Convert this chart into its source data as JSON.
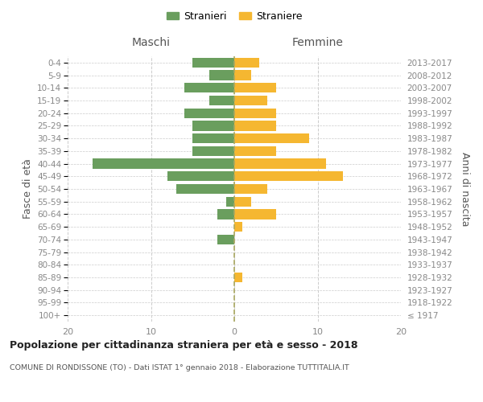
{
  "age_groups": [
    "100+",
    "95-99",
    "90-94",
    "85-89",
    "80-84",
    "75-79",
    "70-74",
    "65-69",
    "60-64",
    "55-59",
    "50-54",
    "45-49",
    "40-44",
    "35-39",
    "30-34",
    "25-29",
    "20-24",
    "15-19",
    "10-14",
    "5-9",
    "0-4"
  ],
  "birth_years": [
    "≤ 1917",
    "1918-1922",
    "1923-1927",
    "1928-1932",
    "1933-1937",
    "1938-1942",
    "1943-1947",
    "1948-1952",
    "1953-1957",
    "1958-1962",
    "1963-1967",
    "1968-1972",
    "1973-1977",
    "1978-1982",
    "1983-1987",
    "1988-1992",
    "1993-1997",
    "1998-2002",
    "2003-2007",
    "2008-2012",
    "2013-2017"
  ],
  "maschi": [
    0,
    0,
    0,
    0,
    0,
    0,
    2,
    0,
    2,
    1,
    7,
    8,
    17,
    5,
    5,
    5,
    6,
    3,
    6,
    3,
    5
  ],
  "femmine": [
    0,
    0,
    0,
    1,
    0,
    0,
    0,
    1,
    5,
    2,
    4,
    13,
    11,
    5,
    9,
    5,
    5,
    4,
    5,
    2,
    3
  ],
  "color_maschi": "#6a9e5e",
  "color_femmine": "#f5b731",
  "title": "Popolazione per cittadinanza straniera per età e sesso - 2018",
  "subtitle": "COMUNE DI RONDISSONE (TO) - Dati ISTAT 1° gennaio 2018 - Elaborazione TUTTITALIA.IT",
  "xlabel_left": "Maschi",
  "xlabel_right": "Femmine",
  "ylabel_left": "Fasce di età",
  "ylabel_right": "Anni di nascita",
  "xlim": 20,
  "legend_stranieri": "Stranieri",
  "legend_straniere": "Straniere",
  "background_color": "#ffffff",
  "grid_color": "#cccccc",
  "axis_label_color": "#555555",
  "tick_color": "#888888"
}
